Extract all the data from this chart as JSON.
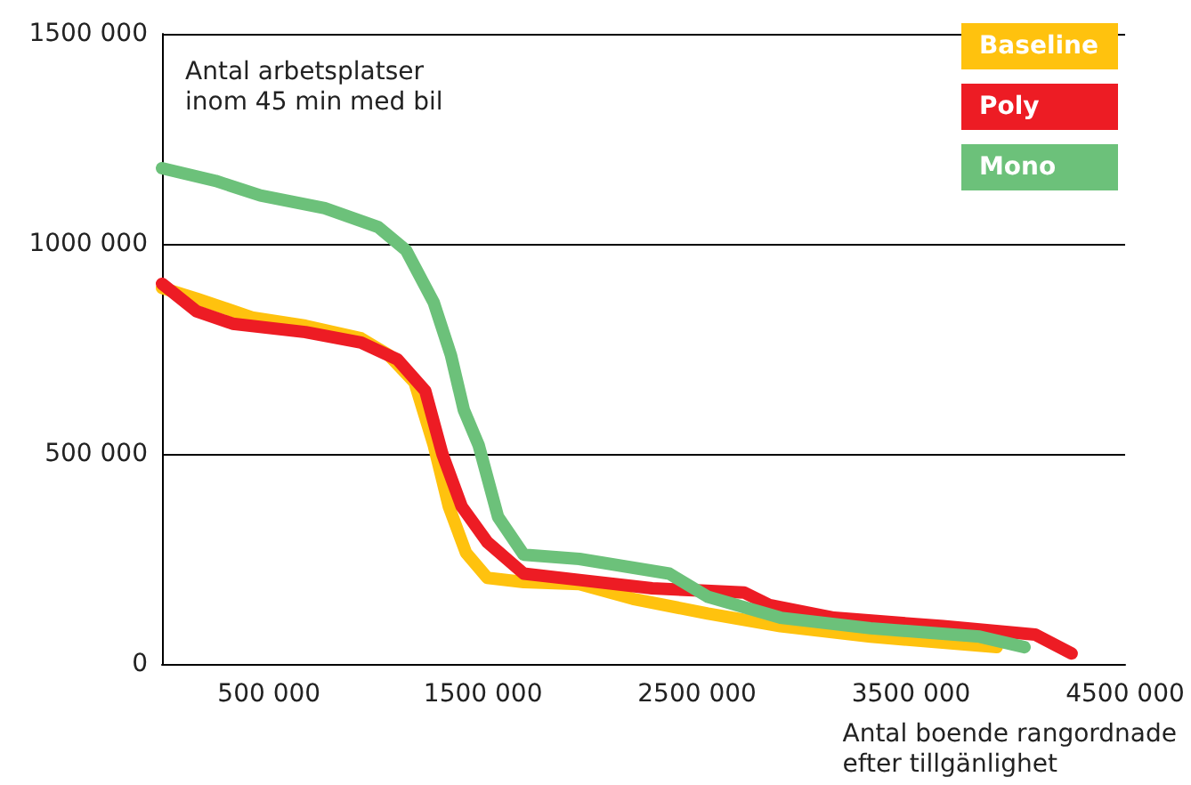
{
  "chart_data": {
    "type": "line",
    "ylabel": "Antal arbetsplatser\ninom 45 min med bil",
    "xlabel": "Antal boende rangordnade\nefter tillgänlighet",
    "xlim": [
      0,
      4500000
    ],
    "ylim": [
      0,
      1500000
    ],
    "xticks": [
      {
        "value": 500000,
        "label": "500 000"
      },
      {
        "value": 1500000,
        "label": "1500 000"
      },
      {
        "value": 2500000,
        "label": "2500 000"
      },
      {
        "value": 3500000,
        "label": "3500 000"
      },
      {
        "value": 4500000,
        "label": "4500 000"
      }
    ],
    "yticks": [
      {
        "value": 0,
        "label": "0"
      },
      {
        "value": 500000,
        "label": "500 000"
      },
      {
        "value": 1000000,
        "label": "1000 000"
      },
      {
        "value": 1500000,
        "label": "1500 000"
      }
    ],
    "grid": "y",
    "legend": "top right",
    "marker": "none",
    "line_style": "solid",
    "series": [
      {
        "name": "Baseline",
        "color": "#ffc20e",
        "x": [
          0,
          160000,
          420000,
          670000,
          930000,
          1060000,
          1180000,
          1270000,
          1340000,
          1420000,
          1520000,
          1690000,
          1950000,
          2200000,
          2550000,
          2890000,
          3310000,
          3900000
        ],
        "values": [
          895000,
          870000,
          825000,
          805000,
          775000,
          735000,
          670000,
          520000,
          375000,
          265000,
          205000,
          195000,
          190000,
          155000,
          120000,
          90000,
          65000,
          40000
        ]
      },
      {
        "name": "Poly",
        "color": "#ed1c24",
        "x": [
          0,
          160000,
          330000,
          670000,
          930000,
          1100000,
          1230000,
          1310000,
          1400000,
          1520000,
          1690000,
          1950000,
          2290000,
          2720000,
          2840000,
          3140000,
          3650000,
          4080000,
          4250000
        ],
        "values": [
          905000,
          840000,
          810000,
          790000,
          765000,
          725000,
          650000,
          500000,
          375000,
          290000,
          215000,
          200000,
          180000,
          170000,
          140000,
          110000,
          90000,
          70000,
          25000
        ]
      },
      {
        "name": "Mono",
        "color": "#6cc17a",
        "x": [
          0,
          250000,
          460000,
          760000,
          1010000,
          1140000,
          1270000,
          1350000,
          1410000,
          1480000,
          1570000,
          1690000,
          1950000,
          2370000,
          2550000,
          2890000,
          3310000,
          3820000,
          4030000
        ],
        "values": [
          1180000,
          1150000,
          1115000,
          1085000,
          1040000,
          985000,
          860000,
          735000,
          605000,
          520000,
          350000,
          260000,
          250000,
          215000,
          160000,
          110000,
          85000,
          65000,
          40000
        ]
      }
    ]
  }
}
